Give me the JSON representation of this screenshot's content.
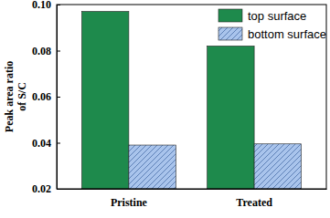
{
  "chart_data": {
    "type": "bar",
    "y_label": "Peak area ratio of S/C",
    "categories": [
      "Pristine",
      "Treated"
    ],
    "series": [
      {
        "name": "top surface",
        "color": "#1e8a4c",
        "values": [
          0.097,
          0.082
        ]
      },
      {
        "name": "bottom surface",
        "color": "#a9c4ec",
        "values": [
          0.039,
          0.0395
        ]
      }
    ],
    "ylim": [
      0.02,
      0.1
    ],
    "yticks": [
      0.02,
      0.04,
      0.06,
      0.08,
      {
        "value": 0.1,
        "label": "0.10"
      }
    ],
    "legend": "upper right",
    "grid": false
  }
}
